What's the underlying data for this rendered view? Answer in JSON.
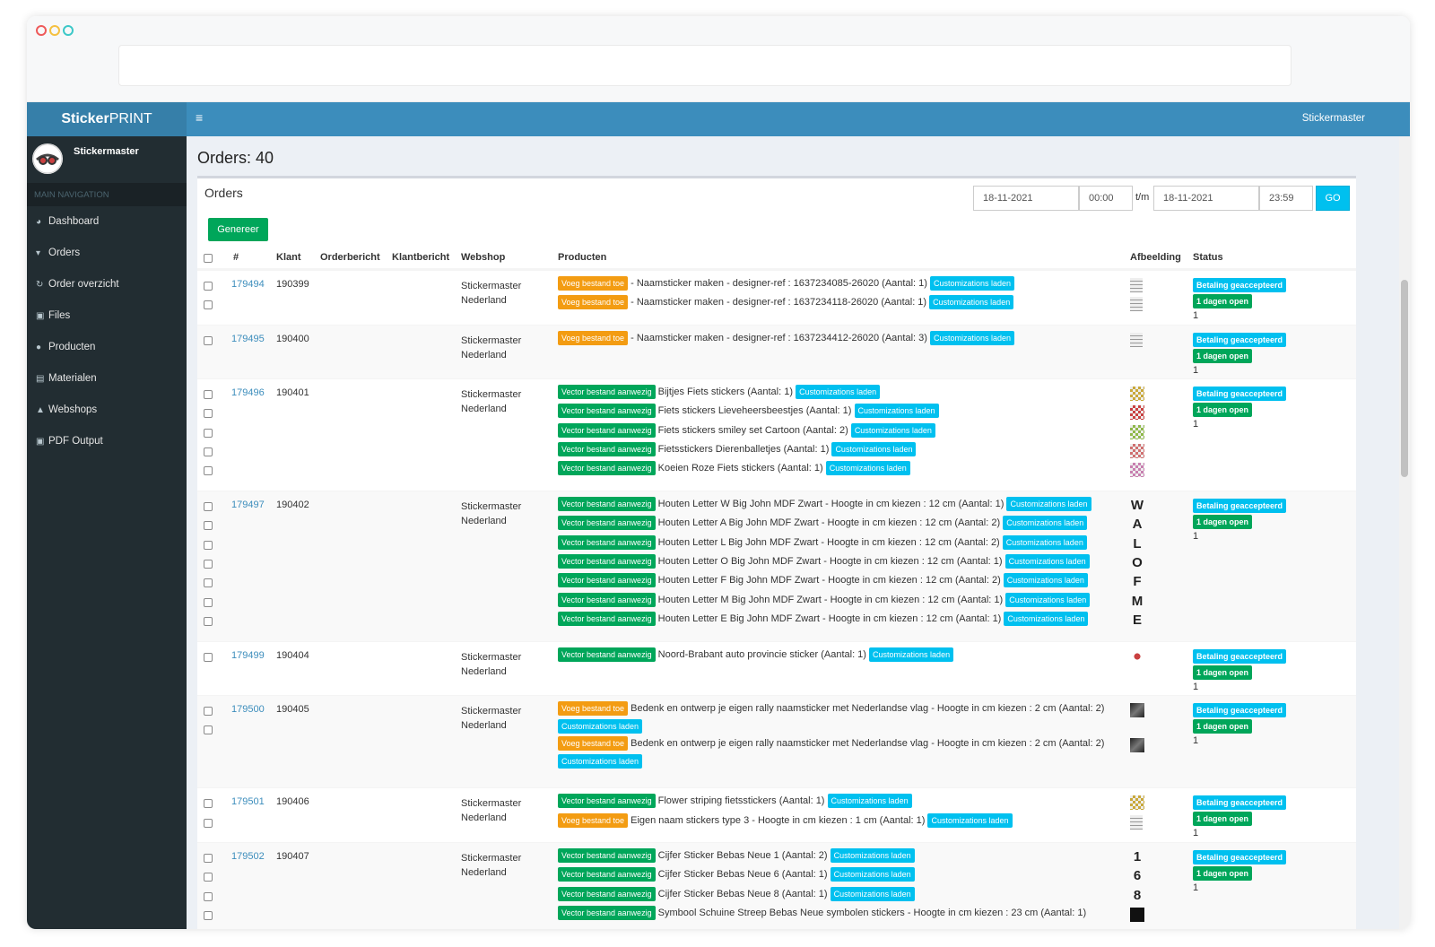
{
  "app": {
    "logo_a": "Sticker",
    "logo_b": "PRINT",
    "user": "Stickermaster",
    "top_user": "Stickermaster"
  },
  "nav": {
    "header": "MAIN NAVIGATION",
    "items": [
      {
        "label": "Dashboard",
        "icon": "dashboard-icon"
      },
      {
        "label": "Orders",
        "icon": "cart-icon"
      },
      {
        "label": "Order overzicht",
        "icon": "refresh-icon"
      },
      {
        "label": "Files",
        "icon": "files-icon"
      },
      {
        "label": "Producten",
        "icon": "globe-icon"
      },
      {
        "label": "Materialen",
        "icon": "materials-icon"
      },
      {
        "label": "Webshops",
        "icon": "shop-icon"
      },
      {
        "label": "PDF Output",
        "icon": "pdf-icon"
      }
    ]
  },
  "page": {
    "title": "Orders: 40",
    "box_title": "Orders",
    "date_from": "18-11-2021",
    "time_from": "00:00",
    "tm": "t/m",
    "date_to": "18-11-2021",
    "time_to": "23:59",
    "go": "GO",
    "generate": "Genereer"
  },
  "columns": [
    "#",
    "Klant",
    "Orderbericht",
    "Klantbericht",
    "Webshop",
    "Producten",
    "Afbeelding",
    "Status"
  ],
  "labels": {
    "vector": "Vector bestand aanwezig",
    "voeg": "Voeg bestand toe",
    "custom": "Customizations laden",
    "pay": "Betaling geaccepteerd",
    "open": "1 dagen open"
  },
  "orders": [
    {
      "id": "179494",
      "klant": "190399",
      "webshop": "Stickermaster Nederland",
      "count": "1",
      "products": [
        {
          "tag": "voeg",
          "text": "- Naamsticker maken - designer-ref : 1637234085-26020 (Aantal: 1)"
        },
        {
          "tag": "voeg",
          "text": "- Naamsticker maken - designer-ref : 1637234118-26020 (Aantal: 1)"
        }
      ]
    },
    {
      "id": "179495",
      "klant": "190400",
      "webshop": "Stickermaster Nederland",
      "count": "1",
      "products": [
        {
          "tag": "voeg",
          "text": "- Naamsticker maken - designer-ref : 1637234412-26020 (Aantal: 3)"
        }
      ]
    },
    {
      "id": "179496",
      "klant": "190401",
      "webshop": "Stickermaster Nederland",
      "count": "1",
      "products": [
        {
          "tag": "vector",
          "text": "Bijtjes Fiets stickers (Aantal: 1)"
        },
        {
          "tag": "vector",
          "text": "Fiets stickers Lieveheersbeestjes (Aantal: 1)"
        },
        {
          "tag": "vector",
          "text": "Fiets stickers smiley set Cartoon (Aantal: 2)"
        },
        {
          "tag": "vector",
          "text": "Fietsstickers Dierenballetjes (Aantal: 1)"
        },
        {
          "tag": "vector",
          "text": "Koeien Roze Fiets stickers (Aantal: 1)"
        }
      ]
    },
    {
      "id": "179497",
      "klant": "190402",
      "webshop": "Stickermaster Nederland",
      "count": "1",
      "products": [
        {
          "tag": "vector",
          "text": "Houten Letter W Big John MDF Zwart - Hoogte in cm kiezen : 12 cm (Aantal: 1)",
          "img": "W"
        },
        {
          "tag": "vector",
          "text": "Houten Letter A Big John MDF Zwart - Hoogte in cm kiezen : 12 cm (Aantal: 2)",
          "img": "A"
        },
        {
          "tag": "vector",
          "text": "Houten Letter L Big John MDF Zwart - Hoogte in cm kiezen : 12 cm (Aantal: 2)",
          "img": "L"
        },
        {
          "tag": "vector",
          "text": "Houten Letter O Big John MDF Zwart - Hoogte in cm kiezen : 12 cm (Aantal: 1)",
          "img": "O"
        },
        {
          "tag": "vector",
          "text": "Houten Letter F Big John MDF Zwart - Hoogte in cm kiezen : 12 cm (Aantal: 2)",
          "img": "F"
        },
        {
          "tag": "vector",
          "text": "Houten Letter M Big John MDF Zwart - Hoogte in cm kiezen : 12 cm (Aantal: 1)",
          "img": "M"
        },
        {
          "tag": "vector",
          "text": "Houten Letter E Big John MDF Zwart - Hoogte in cm kiezen : 12 cm (Aantal: 1)",
          "img": "E"
        }
      ]
    },
    {
      "id": "179499",
      "klant": "190404",
      "webshop": "Stickermaster Nederland",
      "count": "1",
      "products": [
        {
          "tag": "vector",
          "text": "Noord-Brabant auto provincie sticker (Aantal: 1)"
        }
      ]
    },
    {
      "id": "179500",
      "klant": "190405",
      "webshop": "Stickermaster Nederland",
      "count": "1",
      "products": [
        {
          "tag": "voeg",
          "text": "Bedenk en ontwerp je eigen rally naamsticker met Nederlandse vlag - Hoogte in cm kiezen : 2 cm (Aantal: 2)",
          "wrap": true
        },
        {
          "tag": "voeg",
          "text": "Bedenk en ontwerp je eigen rally naamsticker met Nederlandse vlag - Hoogte in cm kiezen : 2 cm (Aantal: 2)",
          "wrap": true
        }
      ]
    },
    {
      "id": "179501",
      "klant": "190406",
      "webshop": "Stickermaster Nederland",
      "count": "1",
      "products": [
        {
          "tag": "vector",
          "text": "Flower striping fietsstickers (Aantal: 1)"
        },
        {
          "tag": "voeg",
          "text": "Eigen naam stickers type 3 - Hoogte in cm kiezen : 1 cm (Aantal: 1)"
        }
      ]
    },
    {
      "id": "179502",
      "klant": "190407",
      "webshop": "Stickermaster Nederland",
      "count": "1",
      "products": [
        {
          "tag": "vector",
          "text": "Cijfer Sticker Bebas Neue 1 (Aantal: 2)",
          "img": "1"
        },
        {
          "tag": "vector",
          "text": "Cijfer Sticker Bebas Neue 6 (Aantal: 1)",
          "img": "6"
        },
        {
          "tag": "vector",
          "text": "Cijfer Sticker Bebas Neue 8 (Aantal: 1)",
          "img": "8"
        },
        {
          "tag": "vector",
          "text": "Symbool Schuine Streep Bebas Neue symbolen stickers - Hoogte in cm kiezen : 23 cm (Aantal: 1)",
          "img": "■",
          "nocustom": true
        }
      ]
    }
  ]
}
